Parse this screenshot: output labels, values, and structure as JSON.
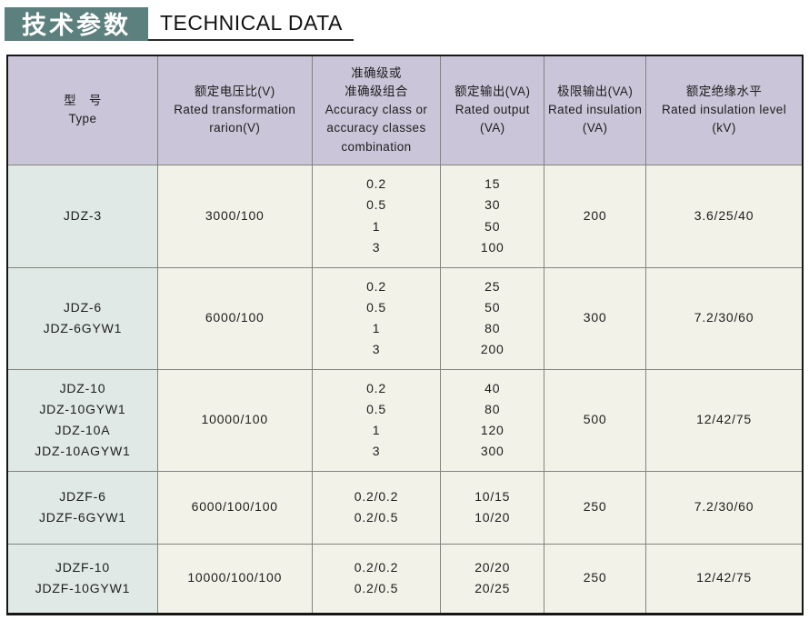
{
  "header": {
    "title_zh": "技术参数",
    "title_en": "TECHNICAL DATA"
  },
  "colors": {
    "title_block_bg": "#5c807d",
    "title_text": "#ffffff",
    "table_header_bg": "#cac5d8",
    "type_column_bg": "#e0e9e5",
    "data_cell_bg": "#f2f2e9",
    "grid_line": "#82847e",
    "outer_border": "#161616"
  },
  "table": {
    "headers": [
      "型　号\nType",
      "额定电压比(V)\nRated transformation\nrarion(V)",
      "准确级或\n准确级组合\nAccuracy class or\naccuracy classes\ncombination",
      "额定输出(VA)\nRated output\n(VA)",
      "极限输出(VA)\nRated insulation\n(VA)",
      "额定绝缘水平\nRated insulation level\n(kV)"
    ],
    "rows": [
      {
        "type": "JDZ-3",
        "ratio": "3000/100",
        "accuracy": "0.2\n0.5\n1\n3",
        "output": "15\n30\n50\n100",
        "limit": "200",
        "insulation": "3.6/25/40"
      },
      {
        "type": "JDZ-6\nJDZ-6GYW1",
        "ratio": "6000/100",
        "accuracy": "0.2\n0.5\n1\n3",
        "output": "25\n50\n80\n200",
        "limit": "300",
        "insulation": "7.2/30/60"
      },
      {
        "type": "JDZ-10\nJDZ-10GYW1\nJDZ-10A\nJDZ-10AGYW1",
        "ratio": "10000/100",
        "accuracy": "0.2\n0.5\n1\n3",
        "output": "40\n80\n120\n300",
        "limit": "500",
        "insulation": "12/42/75"
      },
      {
        "type": "JDZF-6\nJDZF-6GYW1",
        "ratio": "6000/100/100",
        "accuracy": "0.2/0.2\n0.2/0.5",
        "output": "10/15\n10/20",
        "limit": "250",
        "insulation": "7.2/30/60"
      },
      {
        "type": "JDZF-10\nJDZF-10GYW1",
        "ratio": "10000/100/100",
        "accuracy": "0.2/0.2\n0.2/0.5",
        "output": "20/20\n20/25",
        "limit": "250",
        "insulation": "12/42/75"
      }
    ]
  }
}
